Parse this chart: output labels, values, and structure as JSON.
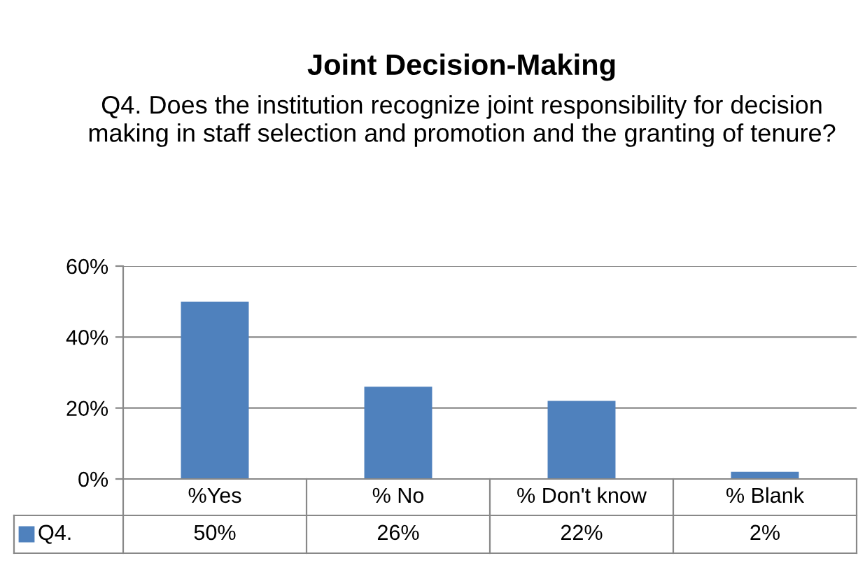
{
  "chart_data": {
    "type": "bar",
    "title": "Joint Decision-Making",
    "subtitle": "Q4. Does the institution recognize joint responsibility for decision making in staff selection and promotion and the granting of tenure?",
    "categories": [
      "%Yes",
      "% No",
      "% Don't know",
      "% Blank"
    ],
    "series": [
      {
        "name": "Q4.",
        "color": "#4f81bd",
        "values": [
          50,
          26,
          22,
          2
        ],
        "value_labels": [
          "50%",
          "26%",
          "22%",
          "2%"
        ]
      }
    ],
    "ylim": [
      0,
      60
    ],
    "yticks": [
      {
        "value": 0,
        "label": "0%"
      },
      {
        "value": 20,
        "label": "20%"
      },
      {
        "value": 40,
        "label": "40%"
      },
      {
        "value": 60,
        "label": "60%"
      }
    ],
    "grid": "y",
    "legend": "bottom"
  }
}
